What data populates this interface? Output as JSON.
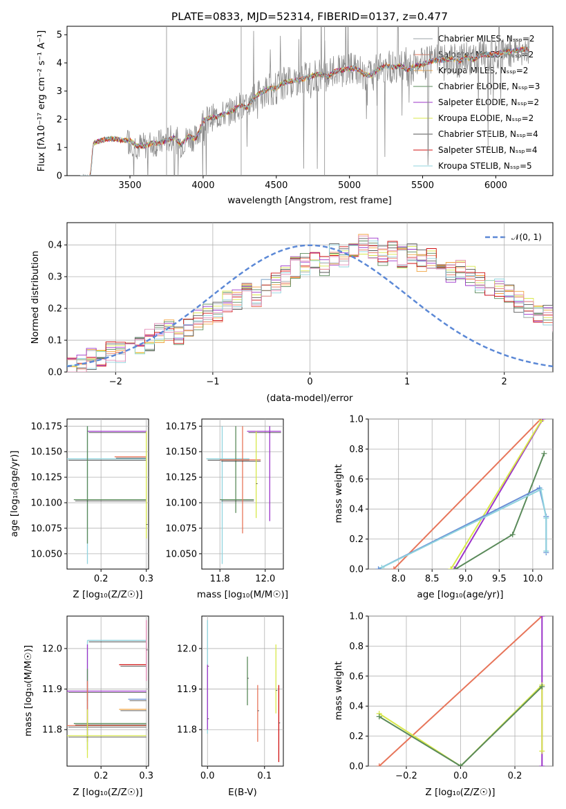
{
  "palette": [
    "#9aa0a6",
    "#e7755a",
    "#f1a340",
    "#5a8a5a",
    "#9b33c9",
    "#d8e84a",
    "#555555",
    "#d01010",
    "#8fd3dd",
    "#6a8fd6",
    "#e38ab6"
  ],
  "chart_data": [
    {
      "id": "spectrum",
      "type": "line",
      "title": "PLATE=0833, MJD=52314, FIBERID=0137, z=0.477",
      "xlabel": "wavelength [Angstrom, rest frame]",
      "ylabel": "Flux [fλ10⁻¹⁷ erg cm⁻² s⁻¹ A⁻¹]",
      "xlim": [
        3070,
        6390
      ],
      "ylim": [
        0,
        5.3
      ],
      "xticks": [
        3500,
        4000,
        4500,
        5000,
        5500,
        6000
      ],
      "yticks": [
        0,
        1,
        2,
        3,
        4,
        5
      ],
      "legend_position": "right",
      "legend": [
        "Chabrier MILES, N_SSP=2",
        "Salpeter MILES, N_SSP=2",
        "Kroupa MILES, N_SSP=2",
        "Chabrier ELODIE, N_SSP=3",
        "Salpeter ELODIE, N_SSP=2",
        "Kroupa ELODIE, N_SSP=2",
        "Chabrier STELIB, N_SSP=4",
        "Salpeter STELIB, N_SSP=4",
        "Kroupa STELIB, N_SSP=5"
      ],
      "model_points": {
        "x": [
          3160,
          3230,
          3250,
          3300,
          3350,
          3400,
          3450,
          3500,
          3550,
          3600,
          3650,
          3700,
          3750,
          3800,
          3850,
          3900,
          3950,
          4000,
          4050,
          4100,
          4150,
          4200,
          4250,
          4300,
          4350,
          4400,
          4450,
          4500,
          4550,
          4600,
          4650,
          4700,
          4750,
          4800,
          4850,
          4900,
          4950,
          5000,
          5050,
          5100,
          5150,
          5200,
          5250,
          5300,
          5350,
          5400,
          5450,
          5500,
          5550,
          5600,
          5650,
          5700,
          5750,
          5800,
          5850,
          5900,
          5950,
          6000,
          6050,
          6100,
          6150,
          6200,
          6230
        ],
        "y": [
          0.0,
          0.0,
          1.15,
          1.25,
          1.3,
          1.3,
          1.25,
          1.25,
          1.05,
          1.05,
          1.15,
          1.15,
          1.25,
          1.35,
          1.1,
          1.4,
          1.3,
          1.95,
          2.05,
          2.1,
          2.2,
          2.3,
          2.5,
          2.4,
          2.8,
          2.95,
          3.1,
          3.1,
          3.3,
          3.35,
          3.4,
          3.45,
          3.55,
          3.6,
          3.5,
          3.7,
          3.75,
          3.8,
          3.8,
          3.6,
          3.55,
          3.8,
          3.9,
          3.85,
          3.9,
          3.75,
          3.9,
          3.95,
          4.05,
          4.1,
          4.1,
          4.15,
          4.05,
          4.2,
          4.1,
          4.3,
          4.3,
          4.3,
          4.4,
          4.4,
          4.45,
          4.5,
          4.5
        ]
      }
    },
    {
      "id": "residuals",
      "type": "line",
      "xlabel": "(data-model)/error",
      "ylabel": "Normed distribution",
      "xlim": [
        -2.5,
        2.5
      ],
      "ylim": [
        0,
        0.47
      ],
      "xticks": [
        -2,
        -1,
        0,
        1,
        2
      ],
      "yticks": [
        0.0,
        0.1,
        0.2,
        0.3,
        0.4
      ],
      "legend": [
        "𝒩(0, 1)"
      ],
      "legend_position": "top-right",
      "histogram_bins": {
        "x_start": -2.5,
        "bin_width": 0.1,
        "y": [
          0.01,
          0.02,
          0.04,
          0.05,
          0.06,
          0.06,
          0.07,
          0.08,
          0.1,
          0.12,
          0.13,
          0.12,
          0.14,
          0.16,
          0.18,
          0.19,
          0.22,
          0.23,
          0.25,
          0.24,
          0.27,
          0.28,
          0.3,
          0.33,
          0.34,
          0.35,
          0.33,
          0.37,
          0.36,
          0.38,
          0.4,
          0.39,
          0.37,
          0.38,
          0.36,
          0.37,
          0.35,
          0.36,
          0.33,
          0.31,
          0.32,
          0.3,
          0.28,
          0.27,
          0.26,
          0.24,
          0.22,
          0.2,
          0.19,
          0.18,
          0.16,
          0.14,
          0.12,
          0.11,
          0.13,
          0.12,
          0.1,
          0.09,
          0.08,
          0.07,
          0.05,
          0.06,
          0.04,
          0.04,
          0.03,
          0.03,
          0.03
        ]
      }
    },
    {
      "id": "age-vs-Z",
      "type": "scatter",
      "xlabel": "Z [log₁₀(Z/Z☉)]",
      "ylabel": "age  [log₁₀(age/yr)]",
      "xlim": [
        0.125,
        0.305
      ],
      "ylim": [
        10.035,
        10.182
      ],
      "xticks": [
        0.2,
        0.3
      ],
      "yticks": [
        10.05,
        10.075,
        10.1,
        10.125,
        10.15,
        10.175
      ],
      "errorbars": [
        {
          "x": 0.17,
          "y": 10.143,
          "xerr": [
            0.125,
            0.3
          ],
          "yerr": [
            10.04,
            10.175
          ]
        },
        {
          "x": 0.17,
          "y": 10.17,
          "xerr": [
            0.17,
            0.3
          ],
          "yerr": [
            10.17,
            10.17
          ]
        },
        {
          "x": 0.17,
          "y": 10.103,
          "xerr": [
            0.14,
            0.3
          ],
          "yerr": [
            10.06,
            10.175
          ]
        },
        {
          "x": 0.27,
          "y": 10.145,
          "xerr": [
            0.23,
            0.3
          ],
          "yerr": [
            10.145,
            10.145
          ]
        },
        {
          "x": 0.3,
          "y": 10.08,
          "xerr": [
            0.3,
            0.3
          ],
          "yerr": [
            10.065,
            10.17
          ]
        }
      ]
    },
    {
      "id": "age-vs-mass",
      "type": "scatter",
      "xlabel": "mass [log₁₀(M/M☉)]",
      "ylabel": "",
      "xlim": [
        11.72,
        12.08
      ],
      "ylim": [
        10.035,
        10.182
      ],
      "xticks": [
        11.8,
        12.0
      ],
      "yticks": [
        10.05,
        10.075,
        10.1,
        10.125,
        10.15,
        10.175
      ],
      "errorbars": [
        {
          "x": 11.81,
          "y": 10.143,
          "xerr": [
            11.74,
            11.93
          ],
          "yerr": [
            10.04,
            10.175
          ]
        },
        {
          "x": 12.02,
          "y": 10.17,
          "xerr": [
            11.92,
            12.07
          ],
          "yerr": [
            10.082,
            10.175
          ]
        },
        {
          "x": 11.87,
          "y": 10.103,
          "xerr": [
            11.8,
            11.95
          ],
          "yerr": [
            10.09,
            10.175
          ]
        },
        {
          "x": 11.9,
          "y": 10.142,
          "xerr": [
            11.8,
            11.98
          ],
          "yerr": [
            10.07,
            10.175
          ]
        },
        {
          "x": 11.96,
          "y": 10.12,
          "xerr": [
            11.96,
            11.96
          ],
          "yerr": [
            10.085,
            10.17
          ]
        }
      ]
    },
    {
      "id": "weight-vs-age",
      "type": "line",
      "xlabel": "age  [log₁₀(age/yr)]",
      "ylabel": "mass weight",
      "xlim": [
        7.55,
        10.3
      ],
      "ylim": [
        0,
        1
      ],
      "xticks": [
        8.0,
        8.5,
        9.0,
        9.5,
        10.0
      ],
      "yticks": [
        0.0,
        0.2,
        0.4,
        0.6,
        0.8,
        1.0
      ],
      "series": [
        {
          "x": [
            7.93,
            10.12
          ],
          "y": [
            0.0,
            1.0
          ]
        },
        {
          "x": [
            8.83,
            10.15
          ],
          "y": [
            0.0,
            1.0
          ]
        },
        {
          "x": [
            8.78,
            10.13
          ],
          "y": [
            0.0,
            0.99
          ]
        },
        {
          "x": [
            8.85,
            9.7,
            10.17
          ],
          "y": [
            0.0,
            0.23,
            0.77
          ]
        },
        {
          "x": [
            7.7,
            10.1,
            10.2,
            10.2
          ],
          "y": [
            0.0,
            0.54,
            0.35,
            0.11
          ]
        },
        {
          "x": [
            7.75,
            10.12,
            10.2,
            10.2
          ],
          "y": [
            0.01,
            0.53,
            0.34,
            0.12
          ]
        }
      ]
    },
    {
      "id": "mass-vs-Z",
      "type": "scatter",
      "xlabel": "Z [log₁₀(Z/Z☉)]",
      "ylabel": "mass [log₁₀(M/M☉)]",
      "xlim": [
        0.125,
        0.305
      ],
      "ylim": [
        11.71,
        12.08
      ],
      "xticks": [
        0.2,
        0.3
      ],
      "yticks": [
        11.8,
        11.9,
        12.0
      ],
      "errorbars": [
        {
          "x": 0.17,
          "y": 12.02,
          "xerr": [
            0.17,
            0.3
          ],
          "yerr": [
            11.87,
            12.02
          ]
        },
        {
          "x": 0.17,
          "y": 11.895,
          "xerr": [
            0.125,
            0.3
          ],
          "yerr": [
            11.77,
            12.01
          ]
        },
        {
          "x": 0.17,
          "y": 11.815,
          "xerr": [
            0.14,
            0.3
          ],
          "yerr": [
            11.75,
            11.95
          ]
        },
        {
          "x": 0.17,
          "y": 11.81,
          "xerr": [
            0.125,
            0.3
          ],
          "yerr": [
            11.8,
            11.92
          ]
        },
        {
          "x": 0.17,
          "y": 11.785,
          "xerr": [
            0.125,
            0.3
          ],
          "yerr": [
            11.73,
            11.85
          ]
        },
        {
          "x": 0.26,
          "y": 11.96,
          "xerr": [
            0.24,
            0.3
          ],
          "yerr": [
            11.96,
            11.96
          ]
        },
        {
          "x": 0.28,
          "y": 11.875,
          "xerr": [
            0.26,
            0.3
          ],
          "yerr": [
            11.875,
            11.875
          ]
        },
        {
          "x": 0.28,
          "y": 11.85,
          "xerr": [
            0.24,
            0.3
          ],
          "yerr": [
            11.85,
            11.85
          ]
        },
        {
          "x": 0.3,
          "y": 12.0,
          "xerr": [
            0.3,
            0.3
          ],
          "yerr": [
            11.92,
            12.07
          ]
        }
      ]
    },
    {
      "id": "mass-vs-ebv",
      "type": "scatter",
      "xlabel": "E(B-V)",
      "ylabel": "",
      "xlim": [
        -0.01,
        0.133
      ],
      "ylim": [
        11.71,
        12.08
      ],
      "xticks": [
        0.0,
        0.1
      ],
      "yticks": [
        11.8,
        11.9,
        12.0
      ],
      "errorbars": [
        {
          "x": 0.0,
          "y": 11.96,
          "xerr": [
            0.0,
            0.0
          ],
          "yerr": [
            11.79,
            12.07
          ]
        },
        {
          "x": 0.0,
          "y": 11.83,
          "xerr": [
            0.0,
            0.0
          ],
          "yerr": [
            11.8,
            11.96
          ]
        },
        {
          "x": 0.07,
          "y": 11.93,
          "xerr": [
            0.07,
            0.07
          ],
          "yerr": [
            11.86,
            11.98
          ]
        },
        {
          "x": 0.088,
          "y": 11.85,
          "xerr": [
            0.088,
            0.088
          ],
          "yerr": [
            11.77,
            11.91
          ]
        },
        {
          "x": 0.12,
          "y": 11.9,
          "xerr": [
            0.12,
            0.12
          ],
          "yerr": [
            11.84,
            12.01
          ]
        },
        {
          "x": 0.125,
          "y": 11.82,
          "xerr": [
            0.125,
            0.125
          ],
          "yerr": [
            11.72,
            11.91
          ]
        }
      ]
    },
    {
      "id": "weight-vs-Z",
      "type": "line",
      "xlabel": "Z [log₁₀(Z/Z☉)]",
      "ylabel": "mass weight",
      "xlim": [
        -0.34,
        0.34
      ],
      "ylim": [
        0,
        1
      ],
      "xticks": [
        -0.2,
        0.0,
        0.2
      ],
      "yticks": [
        0.0,
        0.2,
        0.4,
        0.6,
        0.8,
        1.0
      ],
      "series": [
        {
          "x": [
            -0.3,
            0.3
          ],
          "y": [
            0.0,
            1.0
          ]
        },
        {
          "x": [
            0.3,
            0.3
          ],
          "y": [
            0.0,
            1.0
          ]
        },
        {
          "x": [
            -0.3,
            0.0,
            0.3,
            0.3
          ],
          "y": [
            0.35,
            0.0,
            0.54,
            0.1
          ]
        },
        {
          "x": [
            -0.3,
            0.0,
            0.3
          ],
          "y": [
            0.33,
            0.0,
            0.53
          ]
        }
      ]
    }
  ]
}
